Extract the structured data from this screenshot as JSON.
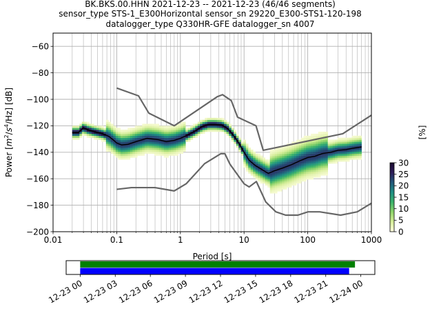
{
  "figure": {
    "title_lines": [
      "BK.BKS.00.HHN   2021-12-23 -- 2021-12-23  (46/46 segments)",
      "sensor_type STS-1_E300Horizontal sensor_sn 29220_E300-STS1-120-198",
      "datalogger_type Q330HR-GFE datalogger_sn 4007"
    ]
  },
  "chart_data": [
    {
      "type": "heatmap",
      "name": "PPSD",
      "xlabel": "Period [s]",
      "ylabel": "Power [m²/s⁴/Hz] [dB]",
      "ylabel_parts": {
        "pre": "Power [",
        "m": "m",
        "m_exp": "2",
        "mid": "/",
        "s": "s",
        "s_exp": "4",
        "tail": "/Hz] [dB]"
      },
      "x_scale": "log",
      "xlim": [
        0.01,
        1000
      ],
      "ylim": [
        -200,
        -50
      ],
      "x_ticks": [
        0.01,
        0.1,
        1,
        10,
        100,
        1000
      ],
      "x_tick_labels": [
        "0.01",
        "0.1",
        "1",
        "10",
        "100",
        "1000"
      ],
      "y_ticks": [
        -200,
        -180,
        -160,
        -140,
        -120,
        -100,
        -80,
        -60
      ],
      "y_tick_labels": [
        "−200",
        "−180",
        "−160",
        "−140",
        "−120",
        "−100",
        "−80",
        "−60"
      ],
      "grid": true,
      "colorbar": {
        "label": "[%]",
        "range": [
          0,
          30
        ],
        "ticks": [
          0,
          5,
          10,
          15,
          20,
          25,
          30
        ],
        "tick_labels": [
          "0",
          "5",
          "10",
          "15",
          "20",
          "25",
          "30"
        ],
        "colors": [
          "#fffee0",
          "#d7ee9a",
          "#8fd46a",
          "#3bb36a",
          "#1f8f84",
          "#22587a",
          "#2d1d5a",
          "#1a0a2e"
        ]
      },
      "noise_models": [
        {
          "name": "NHNM",
          "color": "#666666",
          "points": [
            [
              0.1,
              -91.5
            ],
            [
              0.22,
              -97.4
            ],
            [
              0.32,
              -110.5
            ],
            [
              0.8,
              -120
            ],
            [
              3.8,
              -98
            ],
            [
              4.6,
              -96.5
            ],
            [
              6.3,
              -101
            ],
            [
              7.9,
              -113.5
            ],
            [
              15.4,
              -120
            ],
            [
              20,
              -138.5
            ],
            [
              354.8,
              -126
            ],
            [
              1000,
              -112
            ]
          ]
        },
        {
          "name": "NLNM",
          "color": "#666666",
          "points": [
            [
              0.1,
              -168
            ],
            [
              0.17,
              -166.7
            ],
            [
              0.4,
              -166.7
            ],
            [
              0.8,
              -169.2
            ],
            [
              1.24,
              -163.7
            ],
            [
              2.4,
              -148.6
            ],
            [
              4.3,
              -141.1
            ],
            [
              5,
              -141.1
            ],
            [
              6,
              -149
            ],
            [
              10,
              -163.8
            ],
            [
              12,
              -166.2
            ],
            [
              15.6,
              -162.1
            ],
            [
              21.9,
              -177.5
            ],
            [
              31.6,
              -185
            ],
            [
              45,
              -187.5
            ],
            [
              70,
              -187.5
            ],
            [
              101,
              -185
            ],
            [
              154,
              -185
            ],
            [
              328,
              -187.5
            ],
            [
              600,
              -185
            ],
            [
              1000,
              -178.5
            ]
          ]
        }
      ],
      "mode_curve": {
        "name": "mode",
        "color": "#000000",
        "x": [
          0.02,
          0.025,
          0.03,
          0.035,
          0.045,
          0.06,
          0.075,
          0.09,
          0.1,
          0.12,
          0.15,
          0.2,
          0.3,
          0.45,
          0.6,
          0.8,
          1,
          1.3,
          1.7,
          2.2,
          2.8,
          3.5,
          4.5,
          5.5,
          6.5,
          7.5,
          8.5,
          10,
          12,
          15,
          19,
          24,
          30,
          40,
          55,
          75,
          100,
          130,
          170,
          230,
          300,
          400,
          500,
          700
        ],
        "y": [
          -125,
          -125,
          -121.5,
          -123,
          -124.5,
          -126,
          -128,
          -131,
          -133,
          -134.5,
          -134,
          -132,
          -129.5,
          -130.5,
          -132,
          -131,
          -129.5,
          -127,
          -124,
          -120.5,
          -119,
          -119,
          -119.5,
          -122,
          -126,
          -130,
          -134,
          -140,
          -146,
          -150,
          -153,
          -156,
          -154,
          -152,
          -149.5,
          -146.5,
          -144,
          -143,
          -141,
          -140,
          -138.5,
          -138,
          -137,
          -136
        ]
      }
    },
    {
      "type": "timeline",
      "name": "data coverage",
      "x_tick_labels": [
        "12-23 00",
        "12-23 03",
        "12-23 06",
        "12-23 09",
        "12-23 12",
        "12-23 15",
        "12-23 18",
        "12-23 21",
        "12-24 00"
      ],
      "x_ticks_hours": [
        0,
        3,
        6,
        9,
        12,
        15,
        18,
        21,
        24
      ],
      "xlim_hours": [
        -1.2,
        25.2
      ],
      "bars": [
        {
          "name": "data",
          "color": "#008000",
          "start_hour": 0,
          "end_hour": 23.5
        },
        {
          "name": "PSD segments",
          "color": "#0000ff",
          "start_hour": 0,
          "end_hour": 23.0
        }
      ]
    }
  ]
}
